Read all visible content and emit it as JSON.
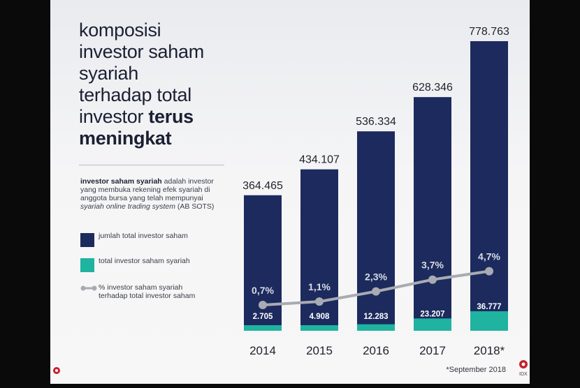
{
  "title": {
    "line1": "komposisi",
    "line2": "investor saham",
    "line3": "syariah",
    "line4": "terhadap total",
    "line5_normal": "investor ",
    "line5_bold": "terus",
    "line6_bold": "meningkat"
  },
  "description": {
    "bold": "investor saham syariah",
    "text1": " adalah investor yang membuka rekening efek syariah di anggota bursa yang telah mempunyai ",
    "italic": "syariah online trading system",
    "text2": " (AB SOTS)"
  },
  "legend": [
    {
      "label": "jumlah total investor saham",
      "color": "#1c2a5e"
    },
    {
      "label": "total investor saham syariah",
      "color": "#1fb3a0"
    },
    {
      "label": "% investor saham syariah terhadap total investor saham",
      "color": "#a8abb1"
    }
  ],
  "footnote": "*September 2018",
  "logo_right_text": "IDX",
  "chart_data": {
    "type": "bar",
    "categories": [
      "2014",
      "2015",
      "2016",
      "2017",
      "2018*"
    ],
    "series": [
      {
        "name": "jumlah total investor saham",
        "labels": [
          "364.465",
          "434.107",
          "536.334",
          "628.346",
          "778.763"
        ],
        "values": [
          364465,
          434107,
          536334,
          628346,
          778763
        ]
      },
      {
        "name": "total investor saham syariah",
        "labels": [
          "2.705",
          "4.908",
          "12.283",
          "23.207",
          "36.777"
        ],
        "values": [
          2705,
          4908,
          12283,
          23207,
          36777
        ]
      },
      {
        "name": "% investor saham syariah terhadap total investor saham",
        "labels": [
          "0,7%",
          "1,1%",
          "2,3%",
          "3,7%",
          "4,7%"
        ],
        "values": [
          0.7,
          1.1,
          2.3,
          3.7,
          4.7
        ]
      }
    ],
    "colors": {
      "total": "#1c2a5e",
      "syariah": "#1fb3a0",
      "line": "#a8abb1"
    }
  }
}
